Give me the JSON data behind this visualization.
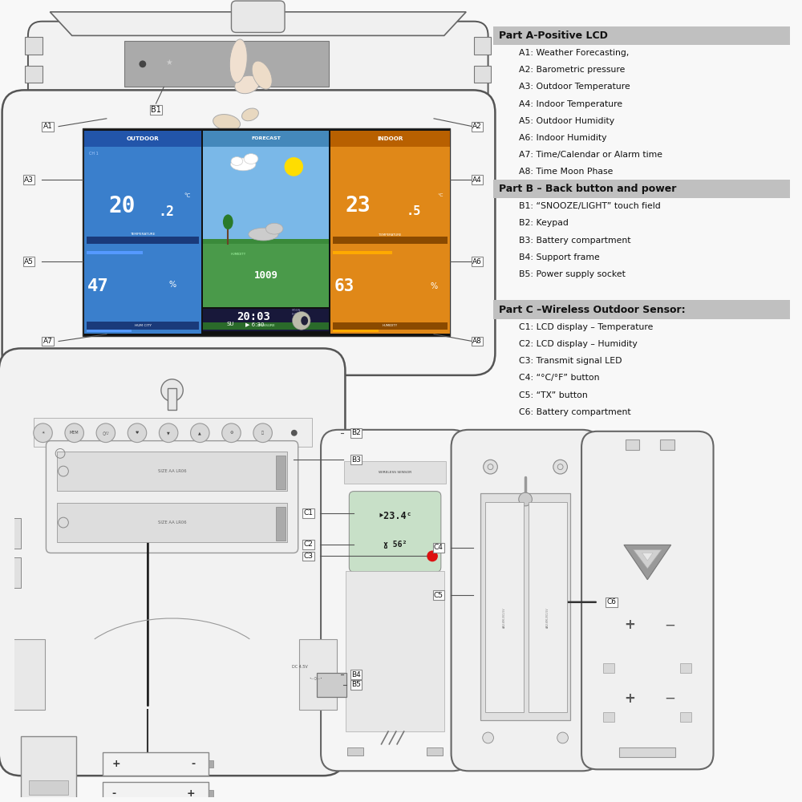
{
  "bg_color": "#f8f8f8",
  "part_a_title": "Part A-Positive LCD",
  "part_a_items": [
    "A1: Weather Forecasting,",
    "A2: Barometric pressure",
    "A3: Outdoor Temperature",
    "A4: Indoor Temperature",
    "A5: Outdoor Humidity",
    "A6: Indoor Humidity",
    "A7: Time/Calendar or Alarm time",
    "A8: Time Moon Phase"
  ],
  "part_b_title": "Part B – Back button and power",
  "part_b_items": [
    "B1: “SNOOZE/LIGHT” touch field",
    "B2: Keypad",
    "B3: Battery compartment",
    "B4: Support frame",
    "B5: Power supply socket"
  ],
  "part_c_title": "Part C –Wireless Outdoor Sensor:",
  "part_c_items": [
    "C1: LCD display – Temperature",
    "C2: LCD display – Humidity",
    "C3: Transmit signal LED",
    "C4: “°C/°F” button",
    "C5: “TX” button",
    "C6: Battery compartment"
  ],
  "header_bg": "#c0c0c0",
  "outdoor_col": "#3a7fcc",
  "indoor_col": "#e08818",
  "forecast_sky": "#7ab8e8",
  "forecast_green": "#3a8a3a",
  "clock_col": "#18183a"
}
